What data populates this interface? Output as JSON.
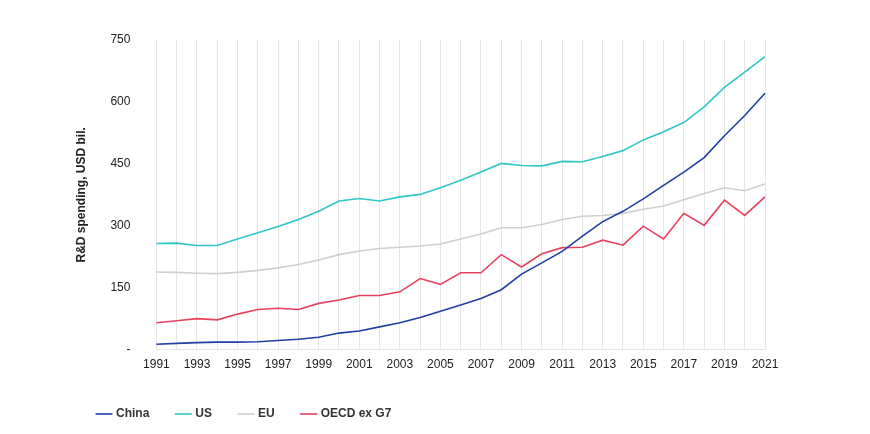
{
  "chart_data": {
    "type": "line",
    "y_label": "R&D spending, USD bil.",
    "categories": [
      "1991",
      null,
      "1993",
      null,
      "1995",
      null,
      "1997",
      null,
      "1999",
      null,
      "2001",
      null,
      "2003",
      null,
      "2005",
      null,
      "2007",
      null,
      "2009",
      null,
      "2011",
      null,
      "2013",
      null,
      "2015",
      null,
      "2017",
      null,
      "2019",
      null,
      "2021"
    ],
    "series": [
      {
        "name": "China",
        "color": "#1f3fa6",
        "values": [
          13,
          15,
          17,
          18,
          18,
          19,
          22,
          25,
          30,
          40,
          45,
          55,
          65,
          78,
          93,
          108,
          124,
          145,
          183,
          210,
          238,
          275,
          310,
          335,
          365,
          398,
          430,
          465,
          518,
          567,
          621
        ]
      },
      {
        "name": "US",
        "color": "#2fc6c8",
        "values": [
          257,
          258,
          252,
          252,
          268,
          283,
          298,
          315,
          335,
          360,
          366,
          360,
          370,
          376,
          392,
          410,
          430,
          451,
          446,
          445,
          456,
          455,
          468,
          482,
          508,
          528,
          550,
          588,
          635,
          672,
          710
        ]
      },
      {
        "name": "EU",
        "color": "#cfcfcf",
        "values": [
          188,
          187,
          185,
          184,
          187,
          192,
          198,
          206,
          217,
          230,
          239,
          245,
          248,
          251,
          256,
          268,
          280,
          295,
          295,
          303,
          315,
          323,
          325,
          330,
          340,
          348,
          363,
          378,
          392,
          385,
          401
        ]
      },
      {
        "name": "OECD ex G7",
        "color": "#e5425e",
        "values": [
          65,
          70,
          75,
          72,
          86,
          97,
          100,
          97,
          112,
          120,
          131,
          131,
          140,
          172,
          158,
          186,
          186,
          230,
          200,
          232,
          247,
          248,
          265,
          253,
          299,
          268,
          330,
          301,
          362,
          325,
          370
        ]
      }
    ],
    "ylim": [
      0,
      750
    ],
    "yticks": [
      {
        "value": 0,
        "label": "-"
      },
      150,
      300,
      450,
      600,
      750
    ],
    "grid": true,
    "legend": "bottom"
  }
}
